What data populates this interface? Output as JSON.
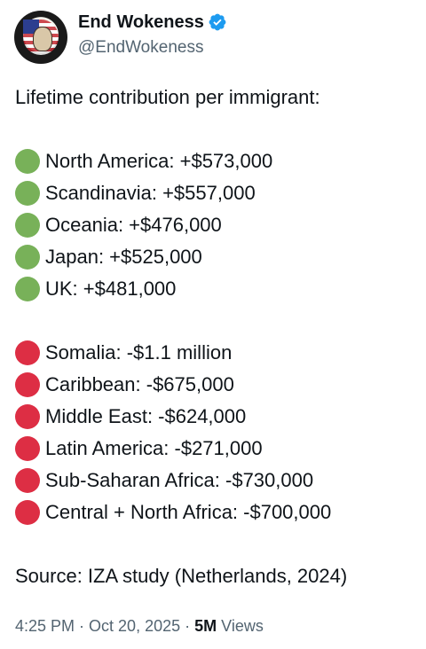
{
  "author": {
    "display_name": "End Wokeness",
    "handle": "@EndWokeness",
    "verified_icon": "verified-badge-icon",
    "avatar_icon": "avatar-image"
  },
  "tweet": {
    "intro": "Lifetime contribution per immigrant:",
    "positive_items": [
      {
        "icon": "green-circle-icon",
        "text": "North America: +$573,000"
      },
      {
        "icon": "green-circle-icon",
        "text": "Scandinavia: +$557,000"
      },
      {
        "icon": "green-circle-icon",
        "text": "Oceania: +$476,000"
      },
      {
        "icon": "green-circle-icon",
        "text": "Japan: +$525,000"
      },
      {
        "icon": "green-circle-icon",
        "text": "UK: +$481,000"
      }
    ],
    "negative_items": [
      {
        "icon": "red-circle-icon",
        "text": "Somalia: -$1.1 million"
      },
      {
        "icon": "red-circle-icon",
        "text": "Caribbean: -$675,000"
      },
      {
        "icon": "red-circle-icon",
        "text": "Middle East: -$624,000"
      },
      {
        "icon": "red-circle-icon",
        "text": "Latin America: -$271,000"
      },
      {
        "icon": "red-circle-icon",
        "text": "Sub-Saharan Africa: -$730,000"
      },
      {
        "icon": "red-circle-icon",
        "text": "Central + North Africa: -$700,000"
      }
    ],
    "source": "Source: IZA study (Netherlands, 2024)"
  },
  "meta": {
    "time": "4:25 PM",
    "separator": " · ",
    "date": "Oct 20, 2025",
    "views_count": "5M",
    "views_label": "Views"
  },
  "colors": {
    "green": "#78b159",
    "red": "#dd2e44",
    "verified": "#1d9bf0",
    "secondary_text": "#536471"
  }
}
